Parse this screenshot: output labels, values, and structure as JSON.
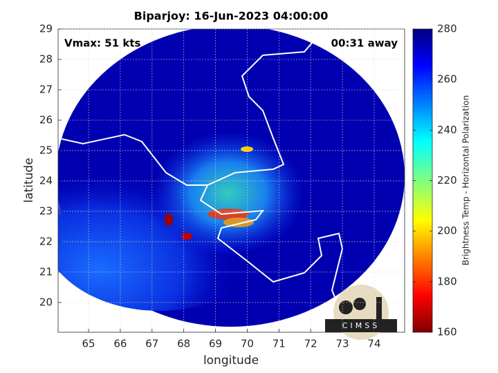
{
  "chart_data": {
    "type": "map",
    "title": "Biparjoy: 16-Jun-2023 04:00:00",
    "annotations": [
      "Vmax: 51 kts",
      "00:31 away"
    ],
    "x_label": "longitude",
    "y_label": "latitude",
    "xlim": [
      64.04,
      74.96
    ],
    "xticks": [
      65,
      66,
      67,
      68,
      69,
      70,
      71,
      72,
      73,
      74
    ],
    "ylim": [
      19.02,
      29
    ],
    "yticks": [
      20,
      21,
      22,
      23,
      24,
      25,
      26,
      27,
      28,
      29
    ],
    "grid": true,
    "colorbar": {
      "label": "Brightness Temp - Horizontal Polarization",
      "lim": [
        160,
        280
      ],
      "ticks": [
        160,
        180,
        200,
        220,
        240,
        260,
        280
      ],
      "colormap": "jet"
    },
    "logo": "CIMSS"
  }
}
